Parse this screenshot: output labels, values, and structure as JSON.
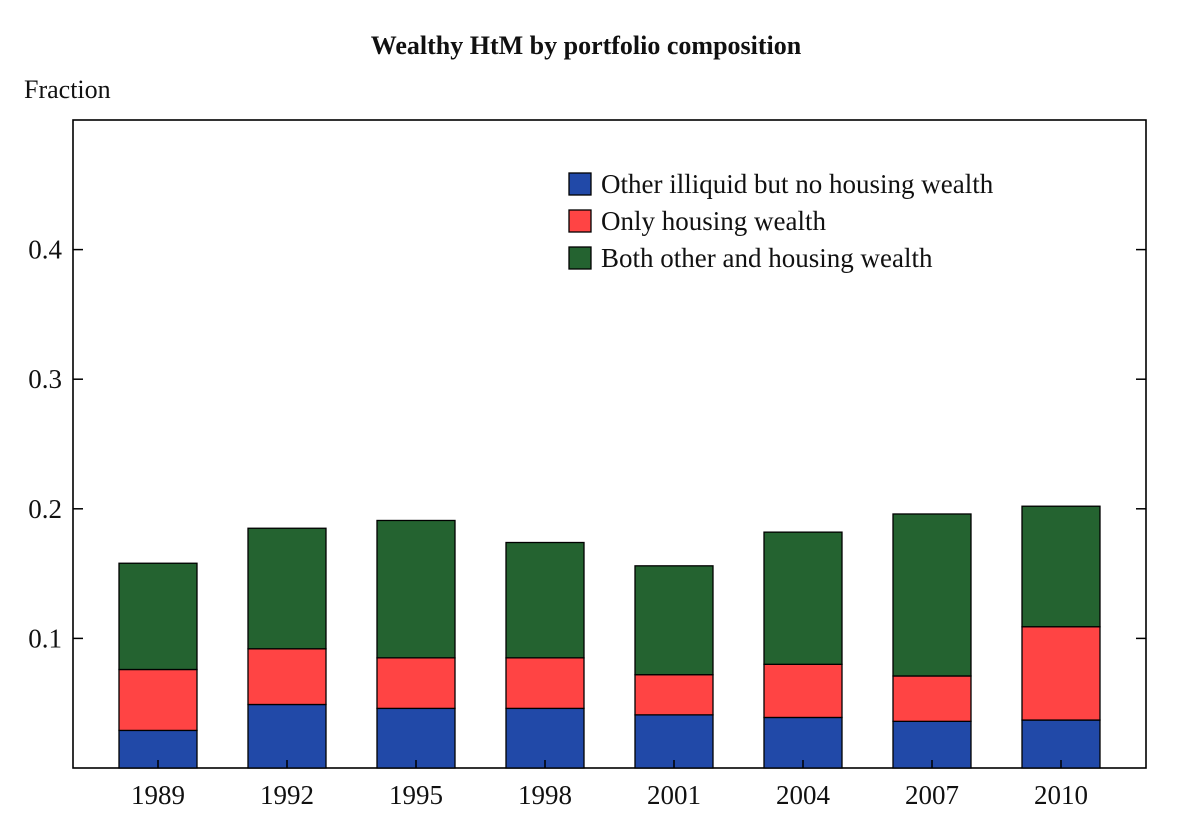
{
  "chart_data": {
    "type": "bar",
    "stacked": true,
    "title": "Wealthy HtM by portfolio composition",
    "ylabel": "Fraction",
    "xlabel": "",
    "categories": [
      "1989",
      "1992",
      "1995",
      "1998",
      "2001",
      "2004",
      "2007",
      "2010"
    ],
    "ylim": [
      0,
      0.5
    ],
    "yticks": [
      "0.1",
      "0.2",
      "0.3",
      "0.4"
    ],
    "ytick_values": [
      0.1,
      0.2,
      0.3,
      0.4
    ],
    "grid": false,
    "legend_position": "top-right",
    "series": [
      {
        "name": "Other illiquid but no housing wealth",
        "color": "#2149a8",
        "values": [
          0.029,
          0.049,
          0.046,
          0.046,
          0.041,
          0.039,
          0.036,
          0.037
        ]
      },
      {
        "name": "Only housing wealth",
        "color": "#ff4444",
        "values": [
          0.047,
          0.043,
          0.039,
          0.039,
          0.031,
          0.041,
          0.035,
          0.072
        ]
      },
      {
        "name": "Both other and housing wealth",
        "color": "#246330",
        "values": [
          0.082,
          0.093,
          0.106,
          0.089,
          0.084,
          0.102,
          0.125,
          0.093
        ]
      }
    ]
  }
}
